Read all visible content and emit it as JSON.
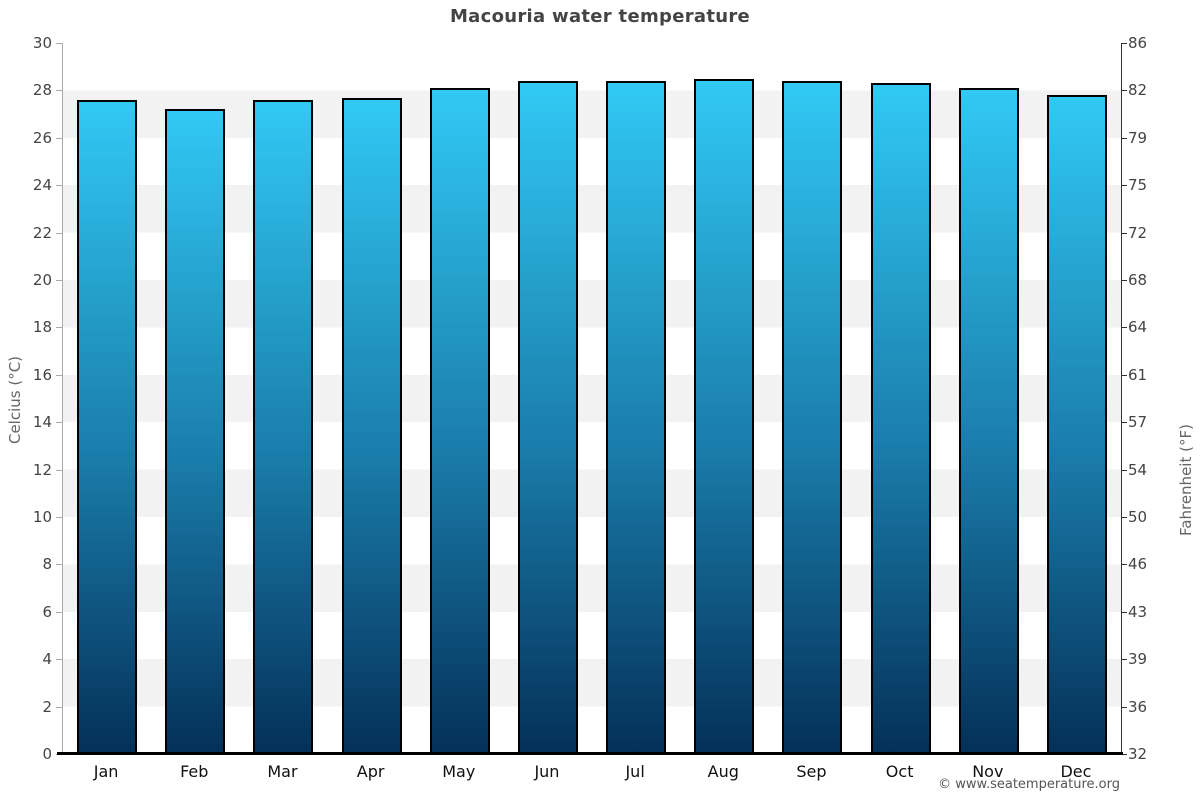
{
  "title": "Macouria water temperature",
  "footer": {
    "credit": "© www.seatemperature.org"
  },
  "colors": {
    "bar_top": "#31c9f4",
    "bar_bottom": "#043058",
    "bar_border": "#000000",
    "band_light": "#ffffff",
    "band_gray": "#f2f2f2",
    "title_text": "#444444",
    "tick_text": "#444444",
    "month_text": "#111111",
    "axis_title_text": "#666666",
    "credit_text": "#555555"
  },
  "chart_data": {
    "type": "bar",
    "title": "Macouria water temperature",
    "categories": [
      "Jan",
      "Feb",
      "Mar",
      "Apr",
      "May",
      "Jun",
      "Jul",
      "Aug",
      "Sep",
      "Oct",
      "Nov",
      "Dec"
    ],
    "series": [
      {
        "name": "Water temperature (°C)",
        "values": [
          27.6,
          27.2,
          27.6,
          27.7,
          28.1,
          28.4,
          28.4,
          28.5,
          28.4,
          28.3,
          28.1,
          27.8
        ]
      }
    ],
    "ylabel_left": "Celcius (°C)",
    "ylabel_right": "Fahrenheit (°F)",
    "ylim": [
      0,
      30
    ],
    "yticks_left": [
      "30",
      "28",
      "26",
      "24",
      "22",
      "20",
      "18",
      "16",
      "14",
      "12",
      "10",
      "8",
      "6",
      "4",
      "2",
      "0"
    ],
    "yticks_right": [
      "86",
      "82",
      "79",
      "75",
      "72",
      "68",
      "64",
      "61",
      "57",
      "54",
      "50",
      "46",
      "43",
      "39",
      "36",
      "32"
    ],
    "grid": "horizontal alternating bands every 2°C (white / light gray)",
    "legend_position": "none",
    "xlabel": ""
  }
}
